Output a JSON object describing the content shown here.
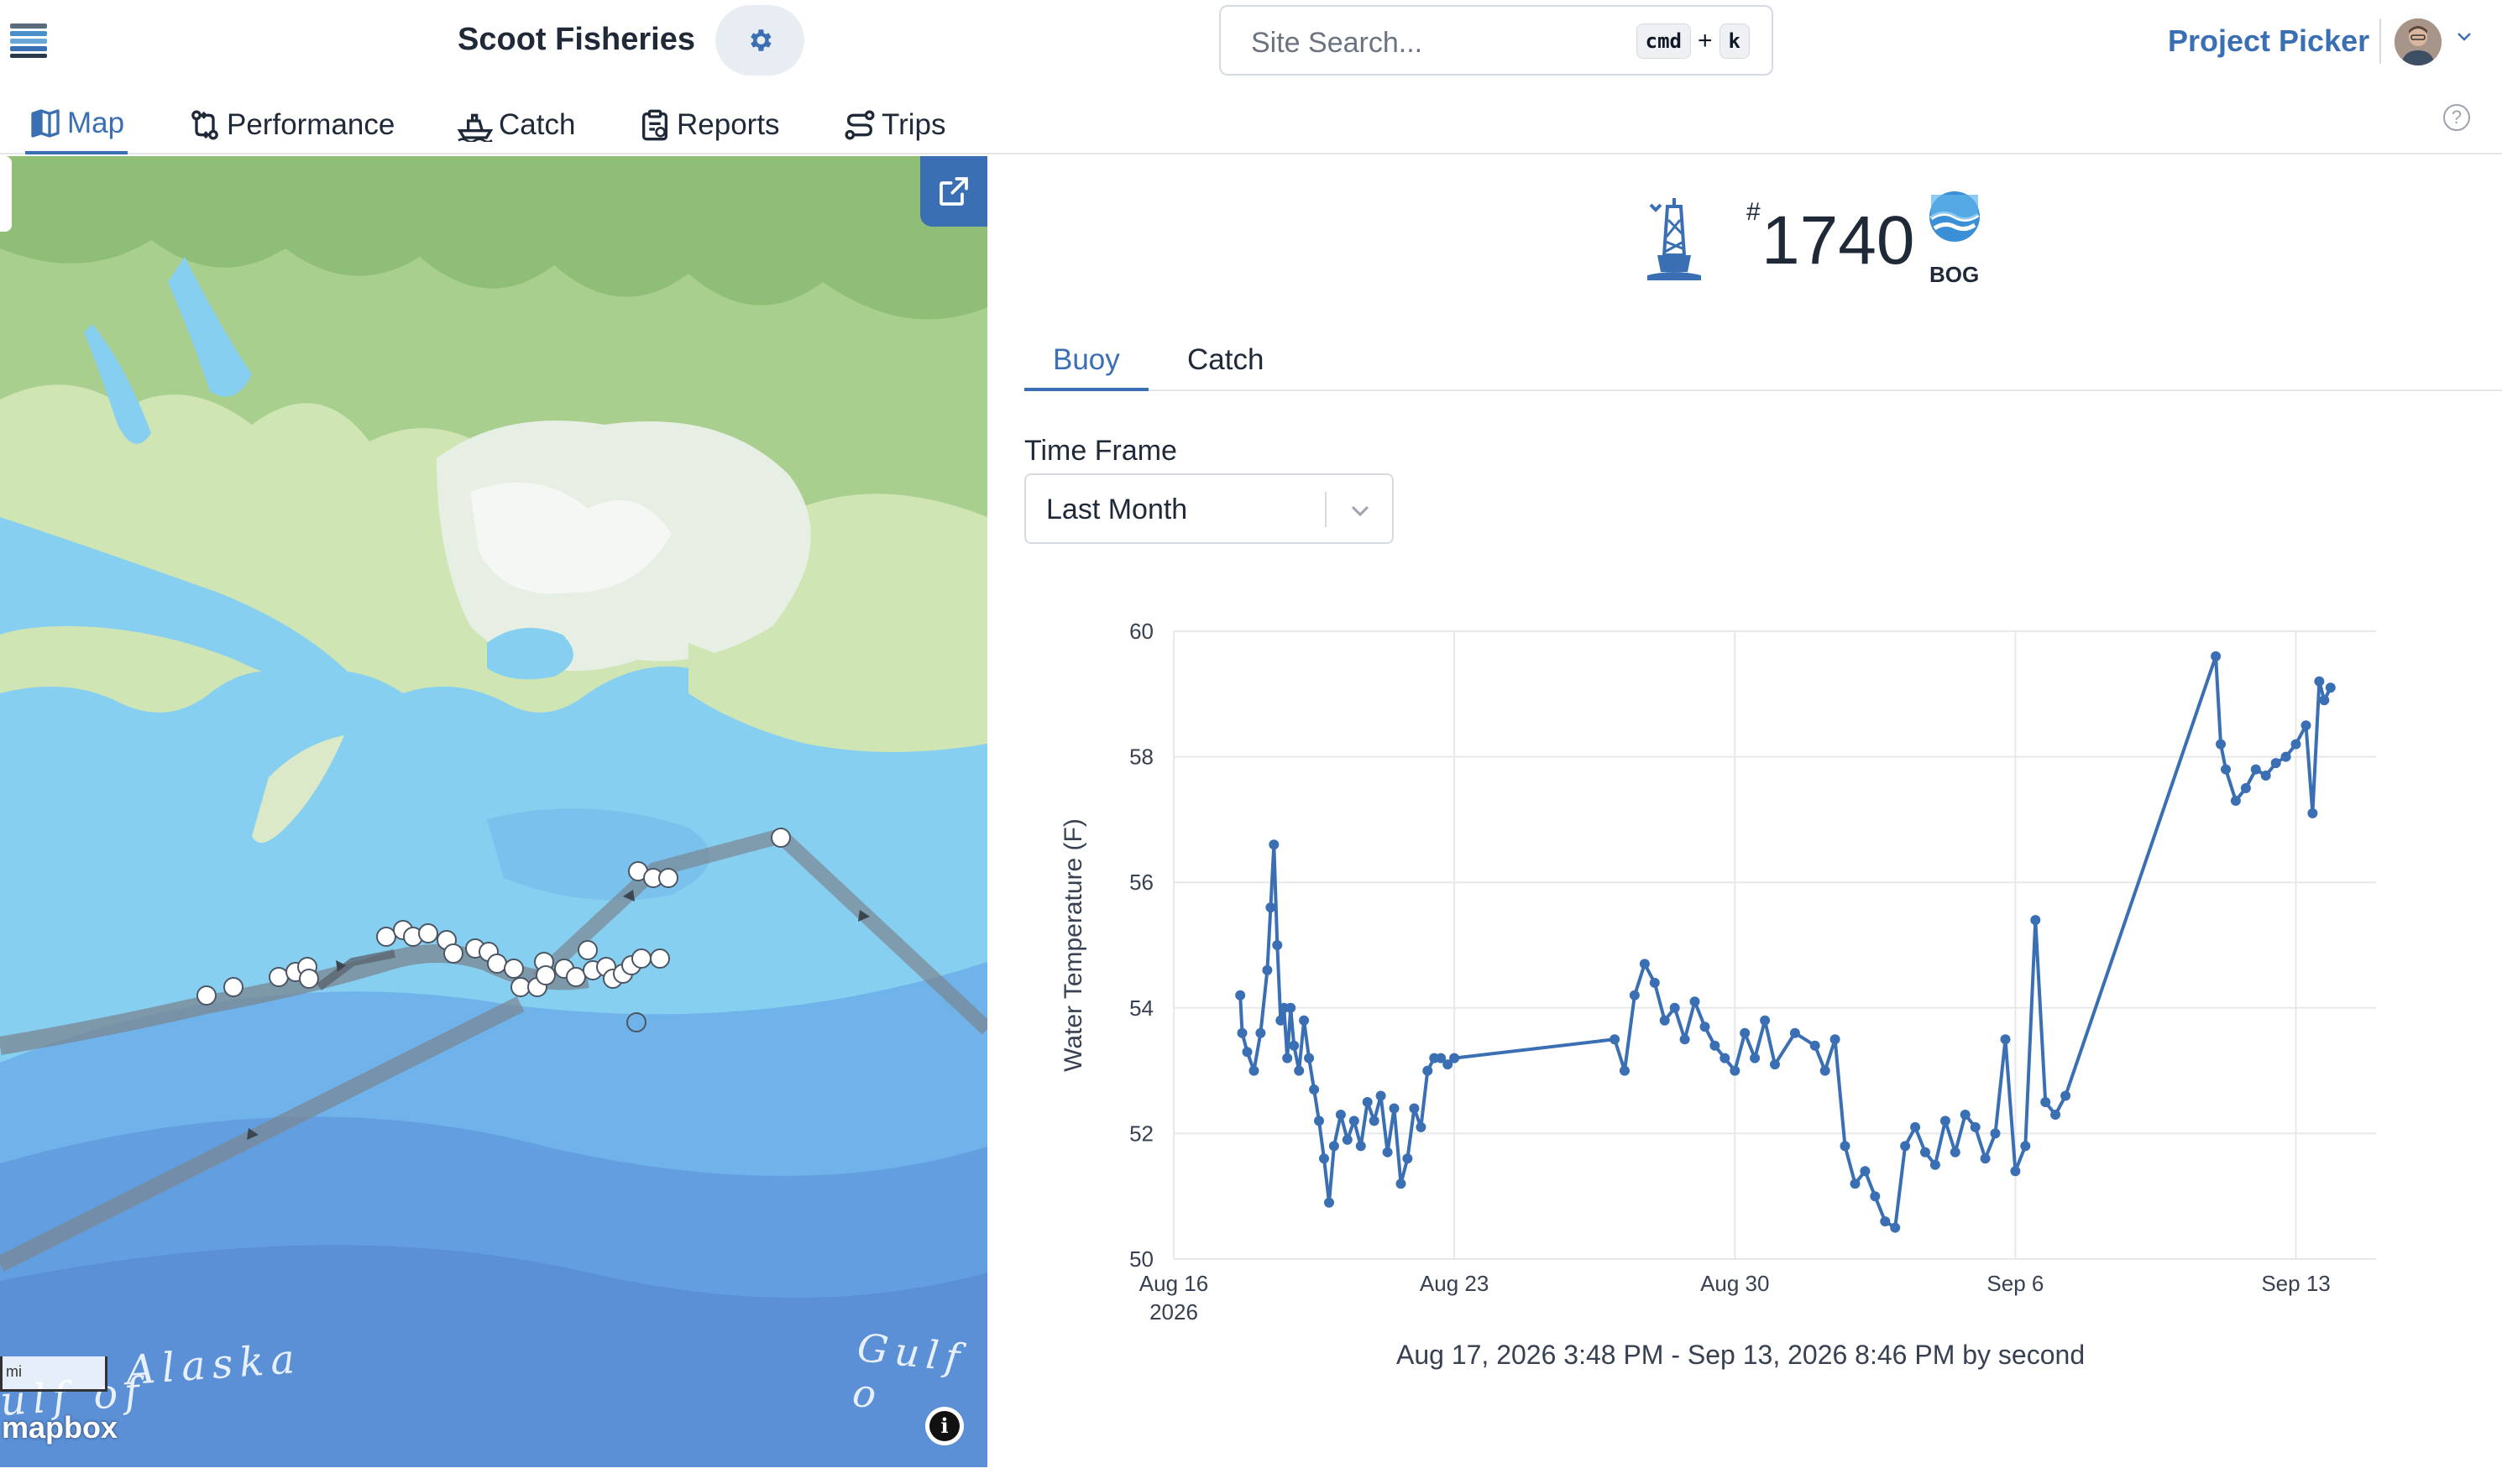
{
  "header": {
    "org_name": "Scoot Fisheries",
    "search_placeholder": "Site Search...",
    "shortcut_key1": "cmd",
    "shortcut_plus": "+",
    "shortcut_key2": "k",
    "project_picker_label": "Project Picker"
  },
  "nav": {
    "tabs": [
      {
        "label": "Map",
        "icon": "map-icon",
        "active": true
      },
      {
        "label": "Performance",
        "icon": "git-compare-icon",
        "active": false
      },
      {
        "label": "Catch",
        "icon": "boat-icon",
        "active": false
      },
      {
        "label": "Reports",
        "icon": "clipboard-icon",
        "active": false
      },
      {
        "label": "Trips",
        "icon": "route-icon",
        "active": false
      }
    ],
    "help_glyph": "?"
  },
  "map": {
    "labels": [
      "Gulf of Alaska",
      "Gulf o"
    ],
    "label_main": "Alaska",
    "label_left": "ulf of",
    "label_right": "Gulf o",
    "scale_text": "mi",
    "attribution": "mapbox",
    "info_glyph": "i"
  },
  "buoy": {
    "hash": "#",
    "number": "1740",
    "org_abbr": "BOG"
  },
  "panel": {
    "tabs": [
      {
        "label": "Buoy",
        "active": true
      },
      {
        "label": "Catch",
        "active": false
      }
    ],
    "time_frame_label": "Time Frame",
    "time_frame_value": "Last Month"
  },
  "colors": {
    "accent": "#3a6fb3",
    "series": "#3a6fb3",
    "water_shallow": "#86cff0",
    "water_deep": "#5b8fd6",
    "land": "#cfe5b3"
  },
  "chart_data": {
    "type": "line",
    "ylabel": "Water Temperature (F)",
    "ylim": [
      50,
      60
    ],
    "yticks": [
      "50",
      "52",
      "54",
      "56",
      "58",
      "60"
    ],
    "xlim": [
      "2026-08-16",
      "2026-09-15"
    ],
    "xticks": [
      {
        "label": "Aug 16",
        "sub": "2026",
        "date": "2026-08-16"
      },
      {
        "label": "Aug 23",
        "sub": "",
        "date": "2026-08-23"
      },
      {
        "label": "Aug 30",
        "sub": "",
        "date": "2026-08-30"
      },
      {
        "label": "Sep 6",
        "sub": "",
        "date": "2026-09-06"
      },
      {
        "label": "Sep 13",
        "sub": "",
        "date": "2026-09-13"
      }
    ],
    "footer": "Aug 17, 2026 3:48 PM - Sep 13, 2026 8:46 PM by second",
    "grid": true,
    "series": [
      {
        "x": [
          "2026-08-17 15:48",
          "2026-08-17 17:00",
          "2026-08-17 20:00",
          "2026-08-18 00:00",
          "2026-08-18 04:00",
          "2026-08-18 08:00",
          "2026-08-18 10:00",
          "2026-08-18 12:00",
          "2026-08-18 14:00",
          "2026-08-18 16:00",
          "2026-08-18 18:00",
          "2026-08-18 20:00",
          "2026-08-18 22:00",
          "2026-08-19 00:00",
          "2026-08-19 03:00",
          "2026-08-19 06:00",
          "2026-08-19 09:00",
          "2026-08-19 12:00",
          "2026-08-19 15:00",
          "2026-08-19 18:00",
          "2026-08-19 21:00",
          "2026-08-20 00:00",
          "2026-08-20 04:00",
          "2026-08-20 08:00",
          "2026-08-20 12:00",
          "2026-08-20 16:00",
          "2026-08-20 20:00",
          "2026-08-21 00:00",
          "2026-08-21 04:00",
          "2026-08-21 08:00",
          "2026-08-21 12:00",
          "2026-08-21 16:00",
          "2026-08-21 20:00",
          "2026-08-22 00:00",
          "2026-08-22 04:00",
          "2026-08-22 08:00",
          "2026-08-22 12:00",
          "2026-08-22 16:00",
          "2026-08-22 20:00",
          "2026-08-23 00:00",
          "2026-08-27 00:00",
          "2026-08-27 06:00",
          "2026-08-27 12:00",
          "2026-08-27 18:00",
          "2026-08-28 00:00",
          "2026-08-28 06:00",
          "2026-08-28 12:00",
          "2026-08-28 18:00",
          "2026-08-29 00:00",
          "2026-08-29 06:00",
          "2026-08-29 12:00",
          "2026-08-29 18:00",
          "2026-08-30 00:00",
          "2026-08-30 06:00",
          "2026-08-30 12:00",
          "2026-08-30 18:00",
          "2026-08-31 00:00",
          "2026-08-31 12:00",
          "2026-09-01 00:00",
          "2026-09-01 06:00",
          "2026-09-01 12:00",
          "2026-09-01 18:00",
          "2026-09-02 00:00",
          "2026-09-02 06:00",
          "2026-09-02 12:00",
          "2026-09-02 18:00",
          "2026-09-03 00:00",
          "2026-09-03 06:00",
          "2026-09-03 12:00",
          "2026-09-03 18:00",
          "2026-09-04 00:00",
          "2026-09-04 06:00",
          "2026-09-04 12:00",
          "2026-09-04 18:00",
          "2026-09-05 00:00",
          "2026-09-05 06:00",
          "2026-09-05 12:00",
          "2026-09-05 18:00",
          "2026-09-06 00:00",
          "2026-09-06 06:00",
          "2026-09-06 12:00",
          "2026-09-06 18:00",
          "2026-09-07 00:00",
          "2026-09-07 06:00",
          "2026-09-11 00:00",
          "2026-09-11 03:00",
          "2026-09-11 06:00",
          "2026-09-11 12:00",
          "2026-09-11 18:00",
          "2026-09-12 00:00",
          "2026-09-12 06:00",
          "2026-09-12 12:00",
          "2026-09-12 18:00",
          "2026-09-13 00:00",
          "2026-09-13 06:00",
          "2026-09-13 10:00",
          "2026-09-13 14:00",
          "2026-09-13 17:00",
          "2026-09-13 20:46"
        ],
        "y": [
          54.2,
          53.6,
          53.3,
          53.0,
          53.6,
          54.6,
          55.6,
          56.6,
          55.0,
          53.8,
          54.0,
          53.2,
          54.0,
          53.4,
          53.0,
          53.8,
          53.2,
          52.7,
          52.2,
          51.6,
          50.9,
          51.8,
          52.3,
          51.9,
          52.2,
          51.8,
          52.5,
          52.2,
          52.6,
          51.7,
          52.4,
          51.2,
          51.6,
          52.4,
          52.1,
          53.0,
          53.2,
          53.2,
          53.1,
          53.2,
          53.5,
          53.0,
          54.2,
          54.7,
          54.4,
          53.8,
          54.0,
          53.5,
          54.1,
          53.7,
          53.4,
          53.2,
          53.0,
          53.6,
          53.2,
          53.8,
          53.1,
          53.6,
          53.4,
          53.0,
          53.5,
          51.8,
          51.2,
          51.4,
          51.0,
          50.6,
          50.5,
          51.8,
          52.1,
          51.7,
          51.5,
          52.2,
          51.7,
          52.3,
          52.1,
          51.6,
          52.0,
          53.5,
          51.4,
          51.8,
          55.4,
          52.5,
          52.3,
          52.6,
          59.6,
          58.2,
          57.8,
          57.3,
          57.5,
          57.8,
          57.7,
          57.9,
          58.0,
          58.2,
          58.5,
          57.1,
          59.2,
          58.9,
          59.1
        ]
      }
    ]
  }
}
